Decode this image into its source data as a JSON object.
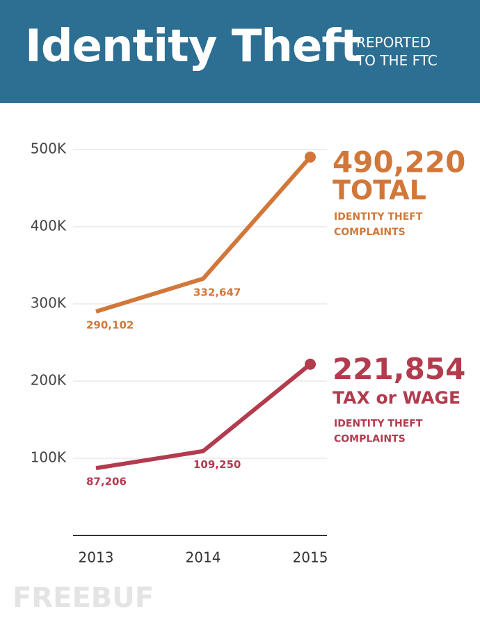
{
  "header": {
    "title": "Identity Theft",
    "subtitle": [
      "REPORTED",
      "TO THE FTC"
    ]
  },
  "chart_data": {
    "type": "line",
    "categories": [
      "2013",
      "2014",
      "2015"
    ],
    "ylim": [
      0,
      500000
    ],
    "yticks": [
      {
        "value": 100000,
        "label": "100K"
      },
      {
        "value": 200000,
        "label": "200K"
      },
      {
        "value": 300000,
        "label": "300K"
      },
      {
        "value": 400000,
        "label": "400K"
      },
      {
        "value": 500000,
        "label": "500K"
      }
    ],
    "grid": true,
    "series": [
      {
        "name": "TOTAL",
        "color": "#d2773a",
        "values": [
          290102,
          332647,
          490220
        ],
        "value_labels": [
          "290,102",
          "332,647",
          "490,220"
        ],
        "note": [
          "IDENTITY THEFT",
          "COMPLAINTS"
        ]
      },
      {
        "name": "TAX or WAGE",
        "color": "#b23b4e",
        "values": [
          87206,
          109250,
          221854
        ],
        "value_labels": [
          "87,206",
          "109,250",
          "221,854"
        ],
        "note": [
          "IDENTITY THEFT",
          "COMPLAINTS"
        ]
      }
    ]
  },
  "watermark": "FREEBUF"
}
